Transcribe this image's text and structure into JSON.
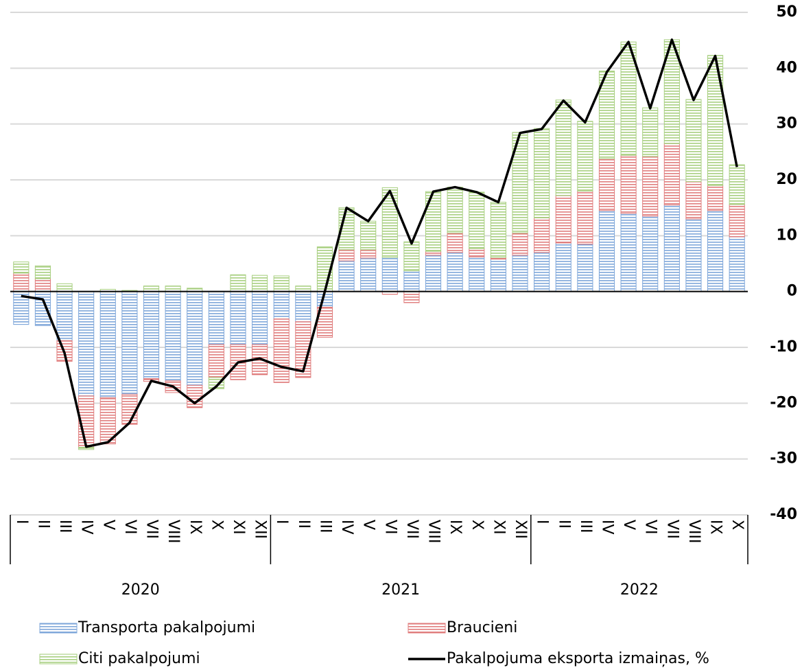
{
  "chart_data": {
    "type": "bar",
    "category_groups": [
      {
        "name": "2020",
        "categories": [
          "I",
          "II",
          "III",
          "IV",
          "V",
          "VI",
          "VII",
          "VIII",
          "IX",
          "X",
          "XI",
          "XII"
        ]
      },
      {
        "name": "2021",
        "categories": [
          "I",
          "II",
          "III",
          "IV",
          "V",
          "VI",
          "VII",
          "VIII",
          "IX",
          "X",
          "XI",
          "XII"
        ]
      },
      {
        "name": "2022",
        "categories": [
          "I",
          "II",
          "III",
          "IV",
          "V",
          "VI",
          "VII",
          "VIII",
          "IX",
          "X"
        ]
      }
    ],
    "series": [
      {
        "name": "Transporta pakalpojumi",
        "type": "bar",
        "color": "#7fa7da",
        "values": [
          -5.9,
          -6.1,
          -8.8,
          -18.7,
          -19,
          -18.4,
          -15.6,
          -16,
          -16.8,
          -9.5,
          -9.5,
          -9.5,
          -4.9,
          -5.4,
          -2.8,
          5.5,
          6.0,
          6.1,
          3.7,
          6.5,
          7.0,
          6.2,
          5.8,
          6.5,
          7.0,
          8.7,
          8.5,
          14.5,
          14.0,
          13.5,
          15.5,
          13.0,
          14.5,
          9.8
        ]
      },
      {
        "name": "Braucieni",
        "type": "bar",
        "color": "#e07d7d",
        "values": [
          3.3,
          2.3,
          -3.7,
          -9.2,
          -8.3,
          -5.4,
          -0.5,
          -2.1,
          -4.0,
          -5.9,
          -6.3,
          -5.4,
          -11.4,
          -10,
          -5.4,
          2.0,
          1.5,
          -0.5,
          -2.0,
          0.7,
          3.5,
          1.5,
          0.3,
          4.0,
          6.2,
          8.5,
          9.5,
          9.3,
          10.4,
          10.7,
          11.0,
          6.7,
          4.5,
          5.8
        ]
      },
      {
        "name": "Citi pakalpojumi",
        "type": "bar",
        "color": "#a8cf80",
        "values": [
          2.0,
          2.3,
          1.4,
          -0.4,
          0.4,
          0.2,
          1.0,
          1.0,
          0.6,
          -2.0,
          3.0,
          2.9,
          2.8,
          1.0,
          8.0,
          7.5,
          5.1,
          12.5,
          5.2,
          10.7,
          8.2,
          10.1,
          9.9,
          18.0,
          16.0,
          17.1,
          12.5,
          15.7,
          20.3,
          8.7,
          18.6,
          14.7,
          23.3,
          7.1
        ]
      },
      {
        "name": "Pakalpojuma eksporta izmaiņas, %",
        "type": "line",
        "color": "#000000",
        "values": [
          -0.8,
          -1.4,
          -11,
          -27.8,
          -27,
          -23.5,
          -16,
          -17,
          -20,
          -17,
          -12.7,
          -12,
          -13.5,
          -14.3,
          0,
          15.0,
          12.6,
          18,
          8.6,
          17.9,
          18.7,
          17.8,
          16,
          28.4,
          29.1,
          34.2,
          30.3,
          39.3,
          44.7,
          32.8,
          45.1,
          34.3,
          42.2,
          22.3
        ]
      }
    ],
    "ylim": [
      -40,
      50
    ],
    "yticks": [
      -40,
      -30,
      -20,
      -10,
      0,
      10,
      20,
      30,
      40,
      50
    ],
    "grid": true
  }
}
